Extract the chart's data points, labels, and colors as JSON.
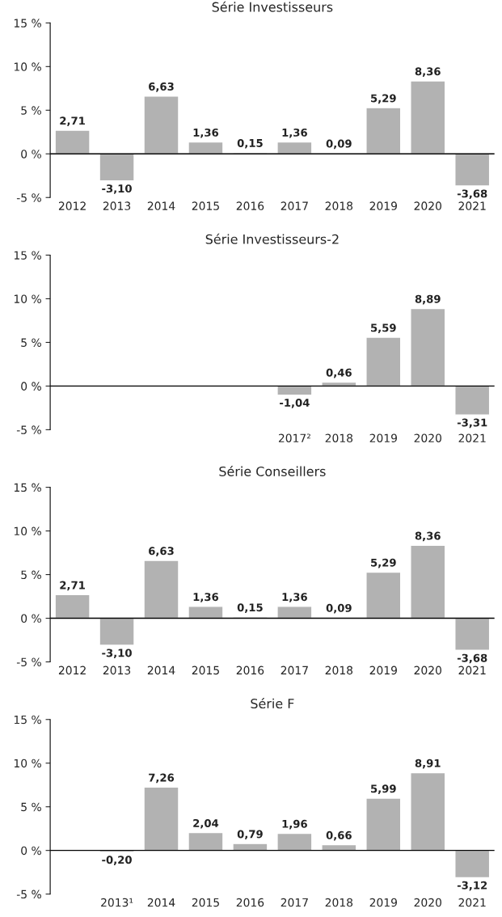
{
  "chart_data": [
    {
      "type": "bar",
      "title": "Série Investisseurs",
      "categories": [
        "2012",
        "2013",
        "2014",
        "2015",
        "2016",
        "2017",
        "2018",
        "2019",
        "2020",
        "2021"
      ],
      "values": [
        2.71,
        -3.1,
        6.63,
        1.36,
        0.15,
        1.36,
        0.09,
        5.29,
        8.36,
        -3.68
      ],
      "value_labels": [
        "2,71",
        "-3,10",
        "6,63",
        "1,36",
        "0,15",
        "1,36",
        "0,09",
        "5,29",
        "8,36",
        "-3,68"
      ],
      "color": "#b2b2b2",
      "ylim": [
        -5,
        15
      ],
      "yticks": [
        {
          "value": -5,
          "label": "-5 %"
        },
        {
          "value": 0,
          "label": "0 %"
        },
        {
          "value": 5,
          "label": "5 %"
        },
        {
          "value": 10,
          "label": "10 %"
        },
        {
          "value": 15,
          "label": "15 %"
        }
      ],
      "ref_lines": [
        {
          "axis": "y",
          "value": 0,
          "color": "#000000"
        }
      ],
      "grid": false
    },
    {
      "type": "bar",
      "title": "Série Investisseurs-2",
      "categories": [
        null,
        null,
        null,
        null,
        null,
        "2017²",
        "2018",
        "2019",
        "2020",
        "2021"
      ],
      "values": [
        null,
        null,
        null,
        null,
        null,
        -1.04,
        0.46,
        5.59,
        8.89,
        -3.31
      ],
      "value_labels": [
        null,
        null,
        null,
        null,
        null,
        "-1,04",
        "0,46",
        "5,59",
        "8,89",
        "-3,31"
      ],
      "color": "#b2b2b2",
      "ylim": [
        -5,
        15
      ],
      "yticks": [
        {
          "value": -5,
          "label": "-5 %"
        },
        {
          "value": 0,
          "label": "0 %"
        },
        {
          "value": 5,
          "label": "5 %"
        },
        {
          "value": 10,
          "label": "10 %"
        },
        {
          "value": 15,
          "label": "15 %"
        }
      ],
      "ref_lines": [
        {
          "axis": "y",
          "value": 0,
          "color": "#000000"
        }
      ],
      "grid": false
    },
    {
      "type": "bar",
      "title": "Série Conseillers",
      "categories": [
        "2012",
        "2013",
        "2014",
        "2015",
        "2016",
        "2017",
        "2018",
        "2019",
        "2020",
        "2021"
      ],
      "values": [
        2.71,
        -3.1,
        6.63,
        1.36,
        0.15,
        1.36,
        0.09,
        5.29,
        8.36,
        -3.68
      ],
      "value_labels": [
        "2,71",
        "-3,10",
        "6,63",
        "1,36",
        "0,15",
        "1,36",
        "0,09",
        "5,29",
        "8,36",
        "-3,68"
      ],
      "color": "#b2b2b2",
      "ylim": [
        -5,
        15
      ],
      "yticks": [
        {
          "value": -5,
          "label": "-5 %"
        },
        {
          "value": 0,
          "label": "0 %"
        },
        {
          "value": 5,
          "label": "5 %"
        },
        {
          "value": 10,
          "label": "10 %"
        },
        {
          "value": 15,
          "label": "15 %"
        }
      ],
      "ref_lines": [
        {
          "axis": "y",
          "value": 0,
          "color": "#000000"
        }
      ],
      "grid": false
    },
    {
      "type": "bar",
      "title": "Série F",
      "categories": [
        null,
        "2013¹",
        "2014",
        "2015",
        "2016",
        "2017",
        "2018",
        "2019",
        "2020",
        "2021"
      ],
      "values": [
        null,
        -0.2,
        7.26,
        2.04,
        0.79,
        1.96,
        0.66,
        5.99,
        8.91,
        -3.12
      ],
      "value_labels": [
        null,
        "-0,20",
        "7,26",
        "2,04",
        "0,79",
        "1,96",
        "0,66",
        "5,99",
        "8,91",
        "-3,12"
      ],
      "color": "#b2b2b2",
      "ylim": [
        -5,
        15
      ],
      "yticks": [
        {
          "value": -5,
          "label": "-5 %"
        },
        {
          "value": 0,
          "label": "0 %"
        },
        {
          "value": 5,
          "label": "5 %"
        },
        {
          "value": 10,
          "label": "10 %"
        },
        {
          "value": 15,
          "label": "15 %"
        }
      ],
      "ref_lines": [
        {
          "axis": "y",
          "value": 0,
          "color": "#000000"
        }
      ],
      "grid": false
    }
  ]
}
